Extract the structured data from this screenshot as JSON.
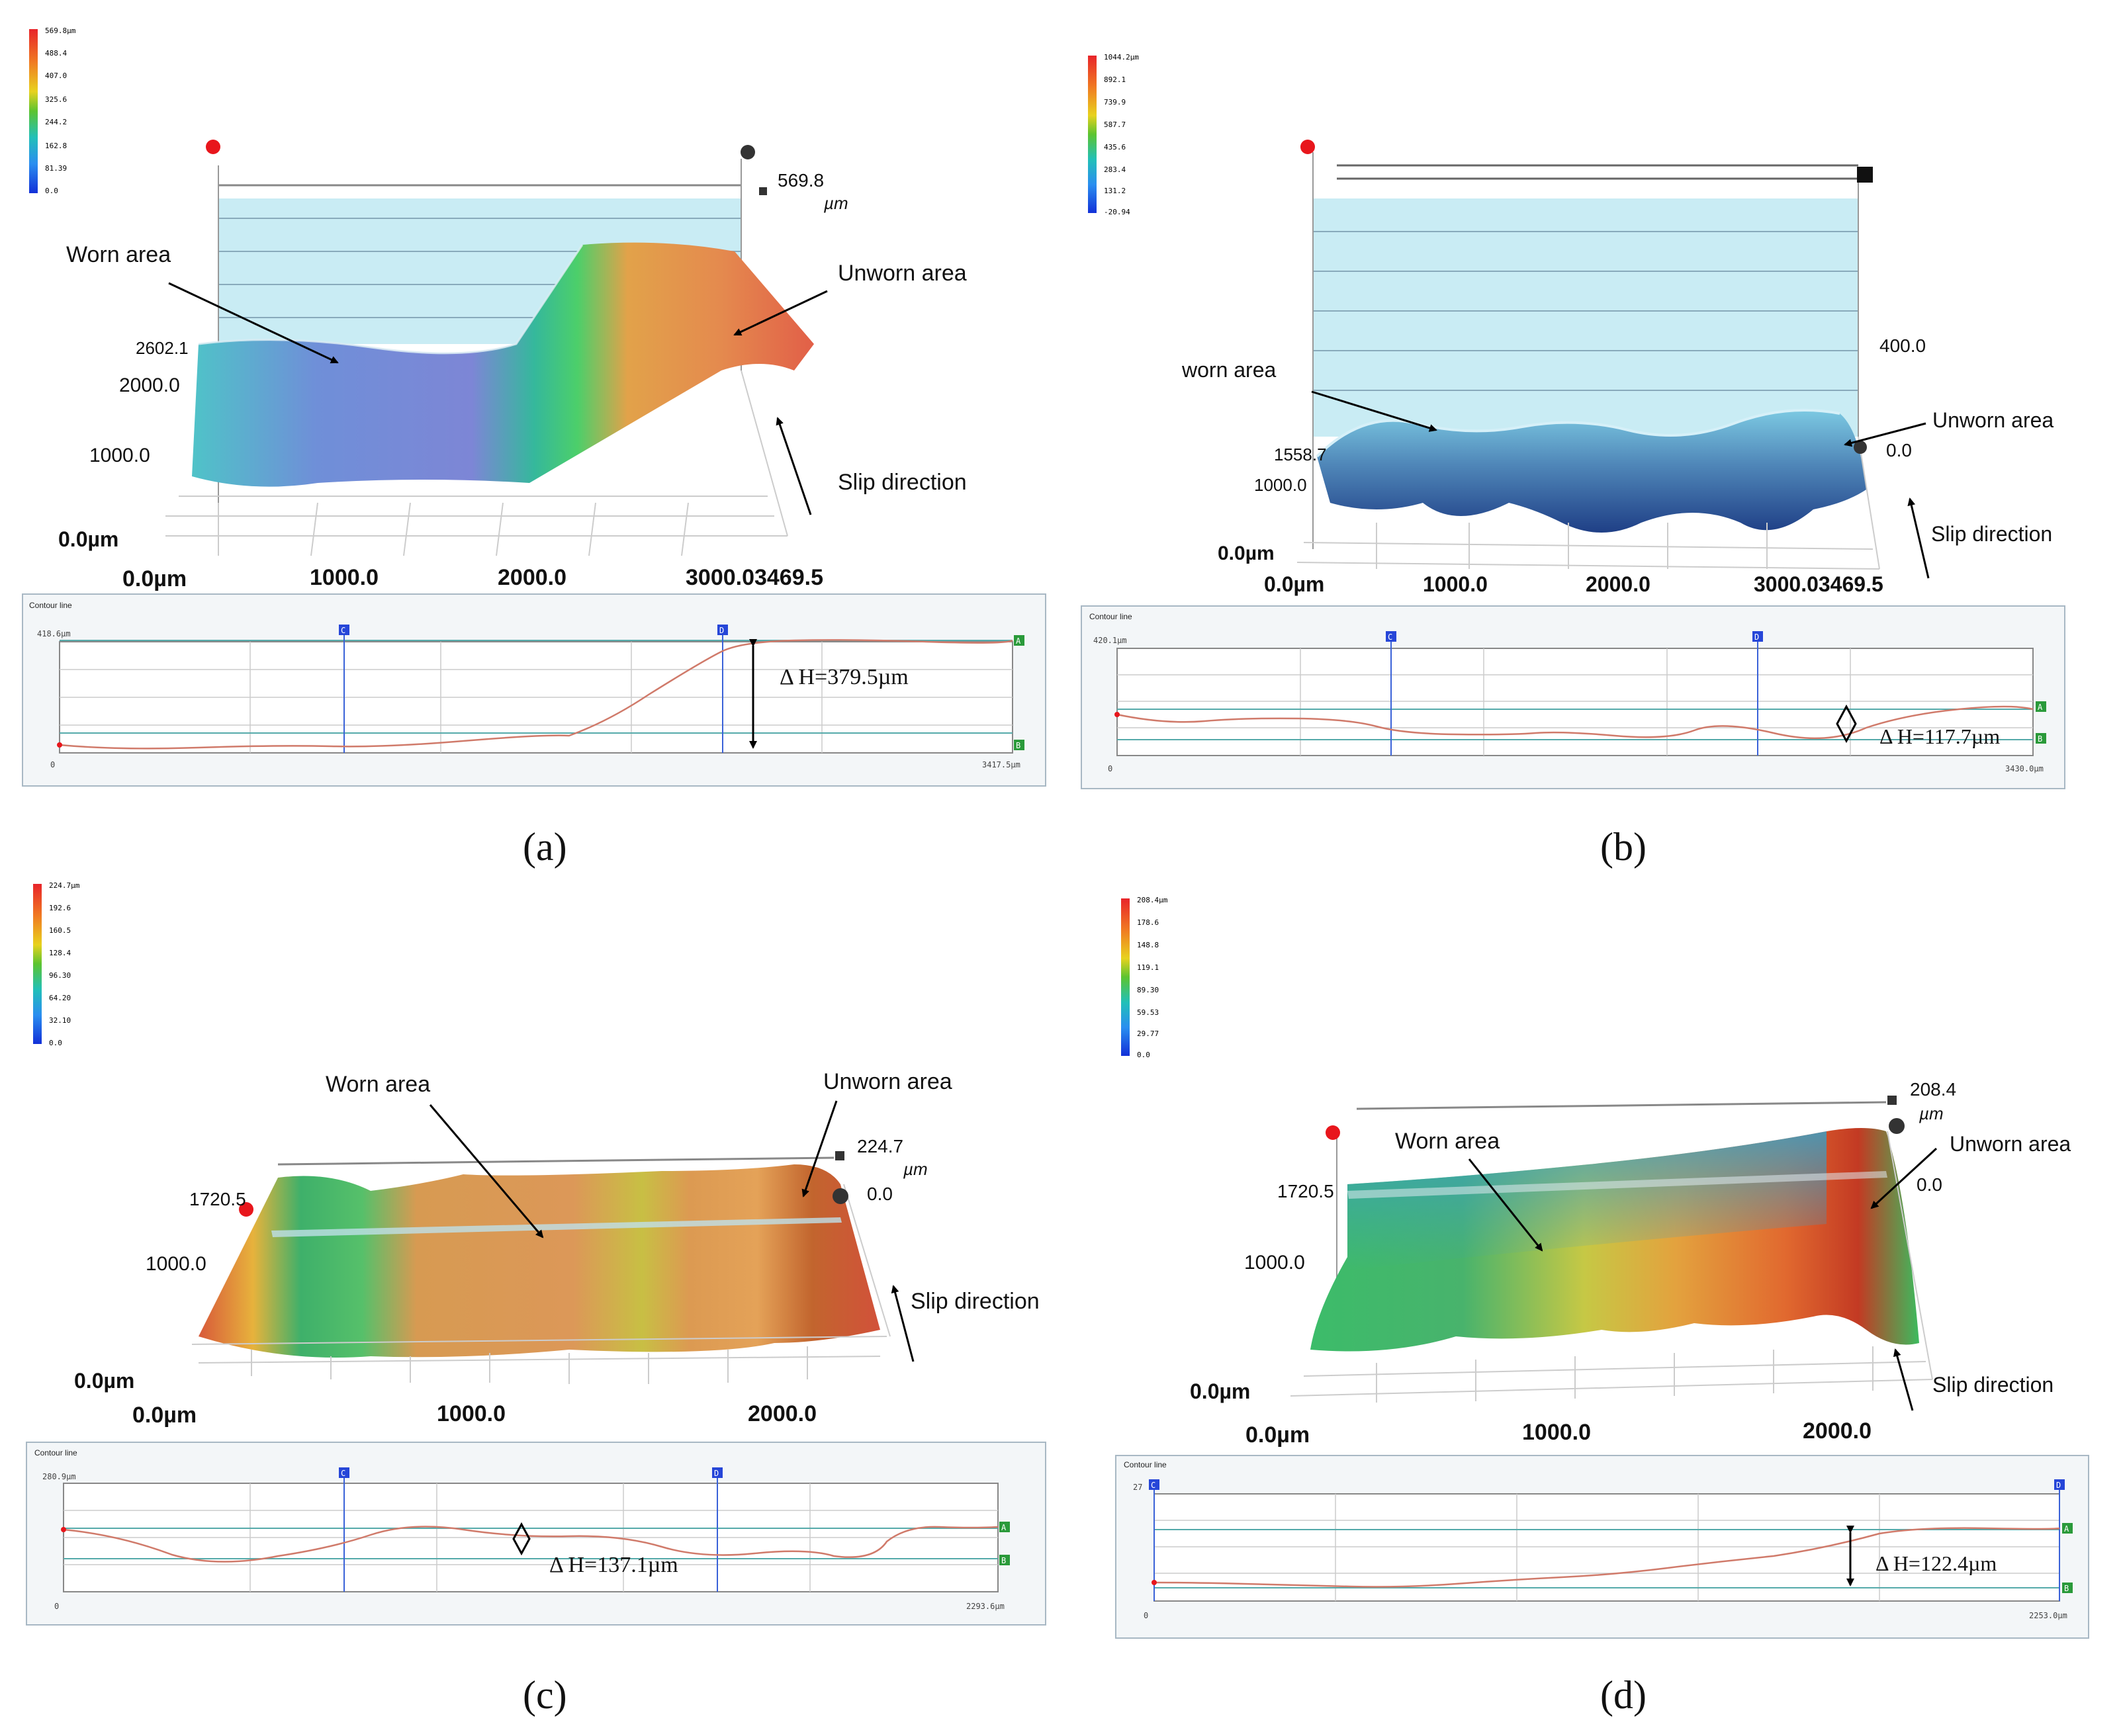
{
  "panels": [
    {
      "id": "a",
      "label": "(a)",
      "colorbar": {
        "max": "569.8µm",
        "ticks": [
          "488.4",
          "407.0",
          "325.6",
          "244.2",
          "162.8",
          "81.39",
          "0.0"
        ]
      },
      "z_top": "569.8",
      "z_unit": "µm",
      "y_ticks": [
        "2602.1",
        "2000.0",
        "1000.0",
        "0.0µm"
      ],
      "x_ticks": [
        "0.0µm",
        "1000.0",
        "2000.0",
        "3000.03469.5"
      ],
      "worn_label": "Worn area",
      "unworn_label": "Unworn area",
      "slip_label": "Slip direction",
      "contour": {
        "title": "Contour line",
        "y_max": "418.6µm",
        "x_start": "0",
        "x_end": "3417.5µm",
        "markers": [
          "C",
          "D",
          "A",
          "B"
        ],
        "delta_h": "Δ H=379.5µm"
      }
    },
    {
      "id": "b",
      "label": "(b)",
      "colorbar": {
        "max": "1044.2µm",
        "ticks": [
          "892.1",
          "739.9",
          "587.7",
          "435.6",
          "283.4",
          "131.2",
          "-20.94"
        ]
      },
      "z_top": "400.0",
      "z_zero": "0.0",
      "y_ticks": [
        "1558.7",
        "1000.0",
        "0.0µm"
      ],
      "x_ticks": [
        "0.0µm",
        "1000.0",
        "2000.0",
        "3000.03469.5"
      ],
      "worn_label": "worn area",
      "unworn_label": "Unworn area",
      "slip_label": "Slip direction",
      "contour": {
        "title": "Contour line",
        "y_max": "420.1µm",
        "x_start": "0",
        "x_end": "3430.0µm",
        "markers": [
          "C",
          "D",
          "A",
          "B"
        ],
        "delta_h": "Δ H=117.7µm"
      }
    },
    {
      "id": "c",
      "label": "(c)",
      "colorbar": {
        "max": "224.7µm",
        "ticks": [
          "192.6",
          "160.5",
          "128.4",
          "96.30",
          "64.20",
          "32.10",
          "0.0"
        ]
      },
      "z_top": "224.7",
      "z_unit": "µm",
      "z_zero": "0.0",
      "y_ticks": [
        "1720.5",
        "1000.0",
        "0.0µm"
      ],
      "x_ticks": [
        "0.0µm",
        "1000.0",
        "2000.0"
      ],
      "worn_label": "Worn area",
      "unworn_label": "Unworn area",
      "slip_label": "Slip direction",
      "contour": {
        "title": "Contour line",
        "y_max": "280.9µm",
        "x_start": "0",
        "x_end": "2293.6µm",
        "markers": [
          "C",
          "D",
          "A",
          "B"
        ],
        "delta_h": "Δ H=137.1µm"
      }
    },
    {
      "id": "d",
      "label": "(d)",
      "colorbar": {
        "max": "208.4µm",
        "ticks": [
          "178.6",
          "148.8",
          "119.1",
          "89.30",
          "59.53",
          "29.77",
          "0.0"
        ]
      },
      "z_top": "208.4",
      "z_unit": "µm",
      "z_zero": "0.0",
      "y_ticks": [
        "1720.5",
        "1000.0",
        "0.0µm"
      ],
      "x_ticks": [
        "0.0µm",
        "1000.0",
        "2000.0"
      ],
      "worn_label": "Worn area",
      "unworn_label": "Unworn area",
      "slip_label": "Slip direction",
      "contour": {
        "title": "Contour line",
        "y_max": "27",
        "x_start": "0",
        "x_end": "2253.0µm",
        "markers": [
          "C",
          "D",
          "A",
          "B"
        ],
        "delta_h": "Δ H=122.4µm"
      }
    }
  ]
}
